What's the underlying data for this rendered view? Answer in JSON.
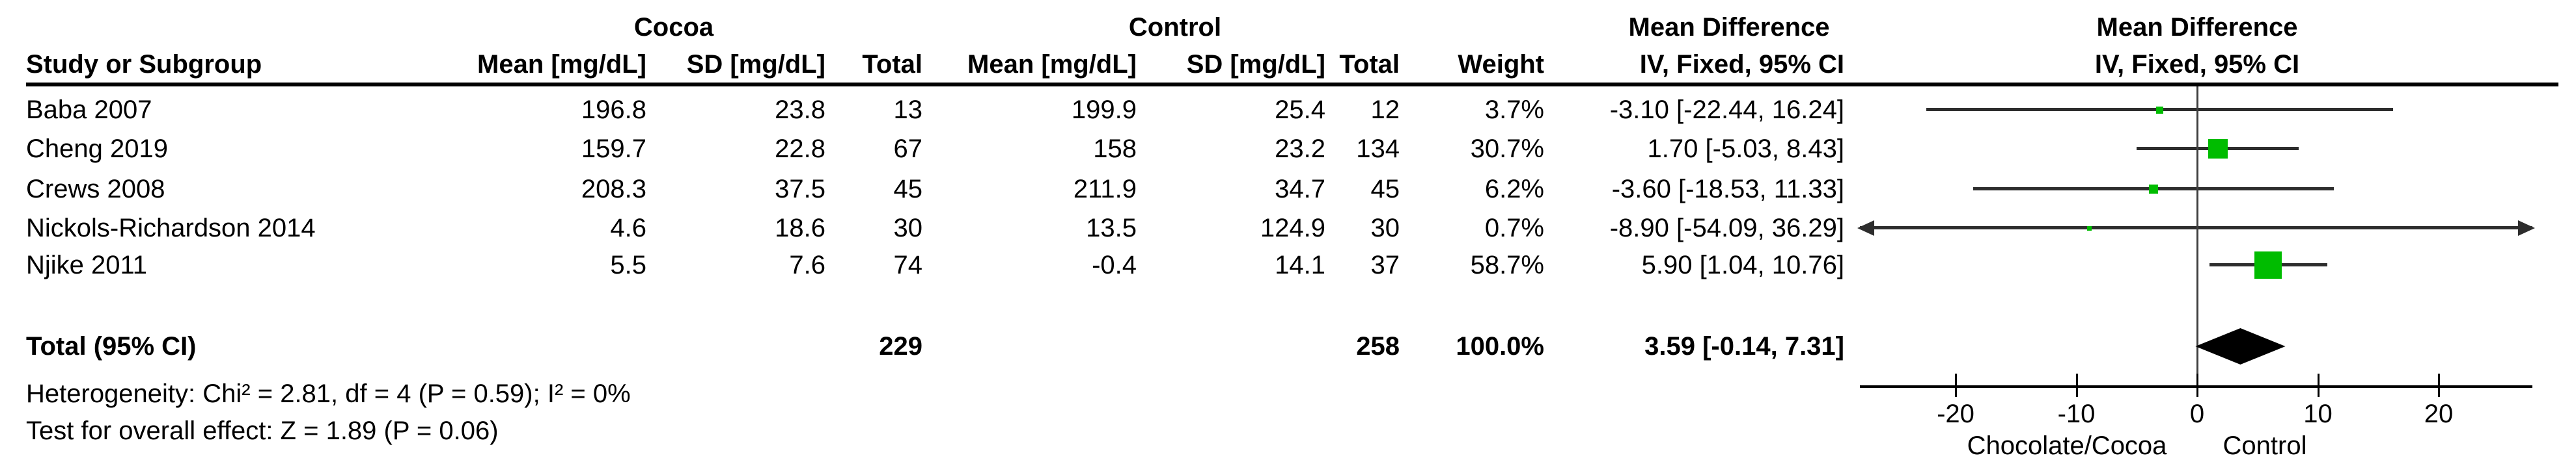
{
  "headers": {
    "cocoa": "Cocoa",
    "control": "Control",
    "md_text": "Mean Difference",
    "md_plot": "Mean Difference"
  },
  "columns": {
    "study": "Study or Subgroup",
    "mean_cocoa": "Mean [mg/dL]",
    "sd_cocoa": "SD [mg/dL]",
    "total_cocoa": "Total",
    "mean_control": "Mean [mg/dL]",
    "sd_control": "SD [mg/dL]",
    "total_control": "Total",
    "weight": "Weight",
    "ci_text": "IV, Fixed, 95% CI",
    "ci_plot": "IV, Fixed, 95% CI"
  },
  "chart_data": {
    "type": "forest",
    "effect_measure": "Mean Difference, IV, Fixed, 95% CI",
    "units": "mg/dL",
    "studies": [
      {
        "name": "Baba 2007",
        "mean1": "196.8",
        "sd1": "23.8",
        "n1": "13",
        "mean2": "199.9",
        "sd2": "25.4",
        "n2": "12",
        "weight": "3.7%",
        "ci_label": "-3.10 [-22.44, 16.24]",
        "md": -3.1,
        "lo": -22.44,
        "hi": 16.24
      },
      {
        "name": "Cheng 2019",
        "mean1": "159.7",
        "sd1": "22.8",
        "n1": "67",
        "mean2": "158",
        "sd2": "23.2",
        "n2": "134",
        "weight": "30.7%",
        "ci_label": "1.70 [-5.03, 8.43]",
        "md": 1.7,
        "lo": -5.03,
        "hi": 8.43
      },
      {
        "name": "Crews 2008",
        "mean1": "208.3",
        "sd1": "37.5",
        "n1": "45",
        "mean2": "211.9",
        "sd2": "34.7",
        "n2": "45",
        "weight": "6.2%",
        "ci_label": "-3.60 [-18.53, 11.33]",
        "md": -3.6,
        "lo": -18.53,
        "hi": 11.33
      },
      {
        "name": "Nickols-Richardson 2014",
        "mean1": "4.6",
        "sd1": "18.6",
        "n1": "30",
        "mean2": "13.5",
        "sd2": "124.9",
        "n2": "30",
        "weight": "0.7%",
        "ci_label": "-8.90 [-54.09, 36.29]",
        "md": -8.9,
        "lo": -54.09,
        "hi": 36.29
      },
      {
        "name": "Njike 2011",
        "mean1": "5.5",
        "sd1": "7.6",
        "n1": "74",
        "mean2": "-0.4",
        "sd2": "14.1",
        "n2": "37",
        "weight": "58.7%",
        "ci_label": "5.90 [1.04, 10.76]",
        "md": 5.9,
        "lo": 1.04,
        "hi": 10.76
      }
    ],
    "total": {
      "name": "Total (95% CI)",
      "n1": "229",
      "n2": "258",
      "weight": "100.0%",
      "ci_label": "3.59 [-0.14, 7.31]",
      "md": 3.59,
      "lo": -0.14,
      "hi": 7.31
    },
    "axis": {
      "ticks": [
        -20,
        -10,
        0,
        10,
        20
      ],
      "xmin": -27.9,
      "xmax": 27.8,
      "label_left": "Chocolate/Cocoa",
      "label_right": "Control"
    },
    "footnotes": {
      "heterogeneity": "Heterogeneity: Chi² = 2.81, df = 4 (P = 0.59); I² = 0%",
      "overall_effect": "Test for overall effect: Z = 1.89 (P = 0.06)"
    }
  },
  "colors": {
    "marker": "#00bc00",
    "diamond": "#000000",
    "ci_line": "#2d2d2d",
    "axis": "#000000",
    "zero_line": "#3f3f3f"
  }
}
